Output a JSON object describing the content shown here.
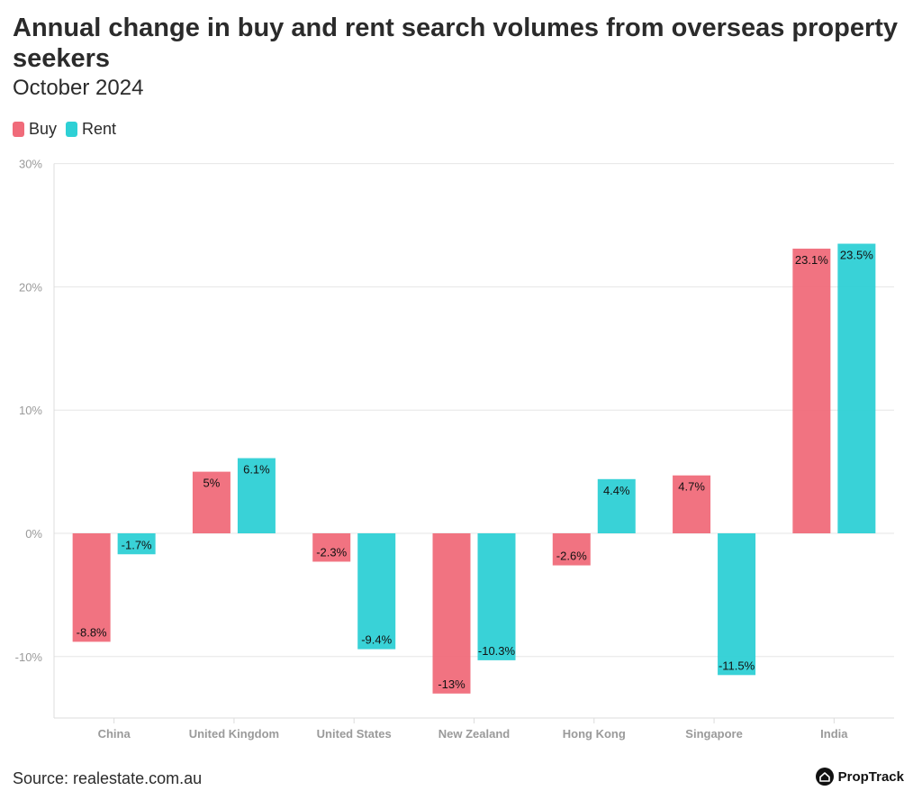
{
  "header": {
    "title": "Annual change in buy and rent search volumes from overseas property seekers",
    "subtitle": "October 2024"
  },
  "legend": [
    {
      "label": "Buy",
      "color": "#f06b7a"
    },
    {
      "label": "Rent",
      "color": "#2ed0d5"
    }
  ],
  "footer": {
    "source": "Source: realestate.com.au",
    "brand": "PropTrack",
    "brand_icon": "house-logo-icon"
  },
  "chart_data": {
    "type": "bar",
    "title": "Annual change in buy and rent search volumes from overseas property seekers",
    "subtitle": "October 2024",
    "xlabel": "",
    "ylabel": "",
    "ylim": [
      -15,
      30
    ],
    "yticks": [
      30,
      20,
      10,
      0,
      -10
    ],
    "ytick_labels": [
      "30%",
      "20%",
      "10%",
      "0%",
      "-10%"
    ],
    "grid": true,
    "legend_position": "top-left",
    "categories": [
      "China",
      "United Kingdom",
      "United States",
      "New Zealand",
      "Hong Kong",
      "Singapore",
      "India"
    ],
    "series": [
      {
        "name": "Buy",
        "color": "#f06b7a",
        "values": [
          -8.8,
          5,
          -2.3,
          -13,
          -2.6,
          4.7,
          23.1
        ],
        "labels": [
          "-8.8%",
          "5%",
          "-2.3%",
          "-13%",
          "-2.6%",
          "4.7%",
          "23.1%"
        ]
      },
      {
        "name": "Rent",
        "color": "#2ed0d5",
        "values": [
          -1.7,
          6.1,
          -9.4,
          -10.3,
          4.4,
          -11.5,
          23.5
        ],
        "labels": [
          "-1.7%",
          "6.1%",
          "-9.4%",
          "-10.3%",
          "4.4%",
          "-11.5%",
          "23.5%"
        ]
      }
    ]
  }
}
